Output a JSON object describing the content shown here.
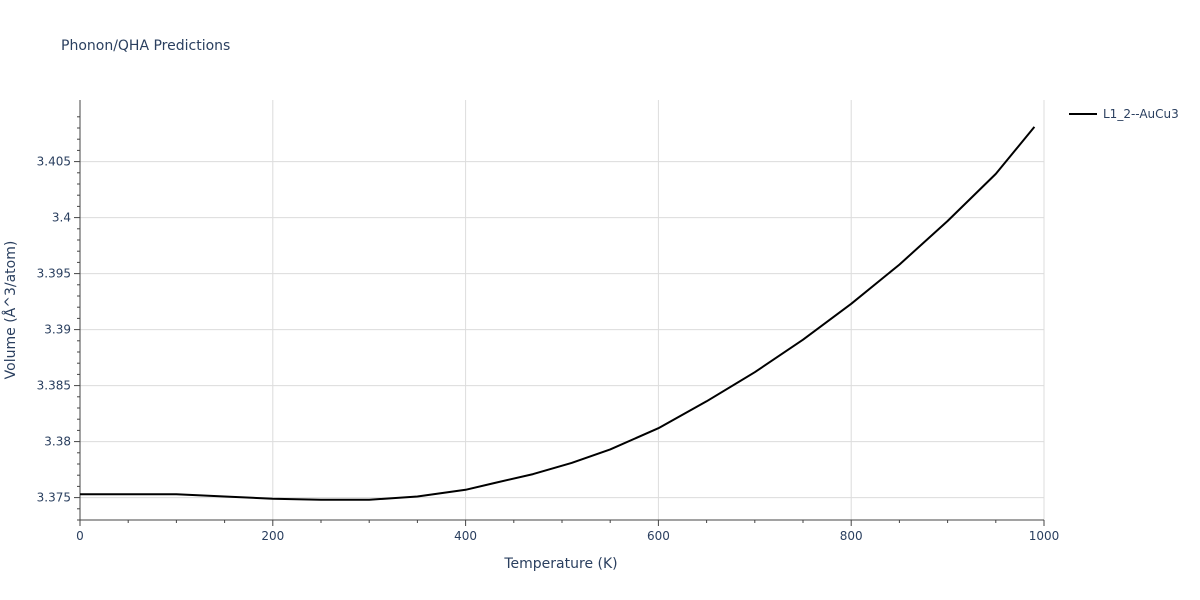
{
  "chart_data": {
    "type": "line",
    "title": "Phonon/QHA Predictions",
    "xlabel": "Temperature (K)",
    "ylabel": "Volume (Å^3/atom)",
    "xlim": [
      0,
      1000
    ],
    "ylim": [
      3.373,
      3.4105
    ],
    "x_ticks": [
      0,
      200,
      400,
      600,
      800,
      1000
    ],
    "x_tick_labels": [
      "0",
      "200",
      "400",
      "600",
      "800",
      "1000"
    ],
    "y_ticks": [
      3.375,
      3.38,
      3.385,
      3.39,
      3.395,
      3.4,
      3.405
    ],
    "y_tick_labels": [
      "3.375",
      "3.38",
      "3.385",
      "3.39",
      "3.395",
      "3.4",
      "3.405"
    ],
    "grid": true,
    "legend_position": "top-right",
    "series": [
      {
        "name": "L1_2--AuCu3",
        "color": "#000000",
        "x": [
          0,
          50,
          100,
          150,
          200,
          250,
          300,
          350,
          400,
          430,
          470,
          510,
          550,
          600,
          650,
          700,
          750,
          800,
          850,
          900,
          950,
          990
        ],
        "y": [
          3.3753,
          3.3753,
          3.3753,
          3.3751,
          3.3749,
          3.3748,
          3.3748,
          3.3751,
          3.3757,
          3.3763,
          3.3771,
          3.3781,
          3.3793,
          3.3812,
          3.3836,
          3.3862,
          3.3891,
          3.3923,
          3.3958,
          3.3997,
          3.4039,
          3.4081
        ]
      }
    ]
  }
}
